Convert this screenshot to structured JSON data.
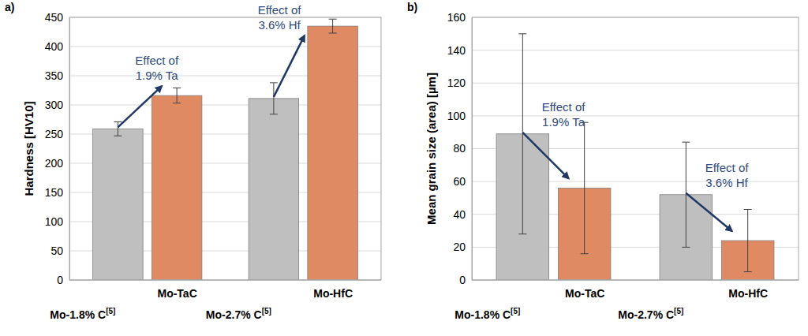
{
  "chart_data": [
    {
      "type": "bar",
      "title": "a)",
      "ylabel": "Hardness [HV10]",
      "categories": [
        "Mo-1.8% C[5]",
        "Mo-TaC",
        "Mo-2.7% C[5]",
        "Mo-HfC"
      ],
      "values": [
        259,
        316,
        311,
        435
      ],
      "errors": [
        12,
        13,
        27,
        12
      ],
      "colors": [
        "#bfbfbf",
        "#e08a63",
        "#bfbfbf",
        "#e08a63"
      ],
      "ylim": [
        0,
        450
      ],
      "yticks": [
        0,
        50,
        100,
        150,
        200,
        250,
        300,
        350,
        400,
        450
      ],
      "grid": true,
      "annotations": [
        [
          "Effect of",
          "1.9% Ta"
        ],
        [
          "Effect of",
          "3.6% Hf"
        ]
      ]
    },
    {
      "type": "bar",
      "title": "b)",
      "ylabel": "Mean grain size (area) [µm]",
      "categories": [
        "Mo-1.8% C[5]",
        "Mo-TaC",
        "Mo-2.7% C[5]",
        "Mo-HfC"
      ],
      "values": [
        89,
        56,
        52,
        24
      ],
      "errors": [
        61,
        40,
        32,
        19
      ],
      "colors": [
        "#bfbfbf",
        "#e08a63",
        "#bfbfbf",
        "#e08a63"
      ],
      "ylim": [
        0,
        160
      ],
      "yticks": [
        0,
        20,
        40,
        60,
        80,
        100,
        120,
        140,
        160
      ],
      "grid": true,
      "annotations": [
        [
          "Effect of",
          "1.9% Ta"
        ],
        [
          "Effect of",
          "3.6% Hf"
        ]
      ]
    }
  ]
}
